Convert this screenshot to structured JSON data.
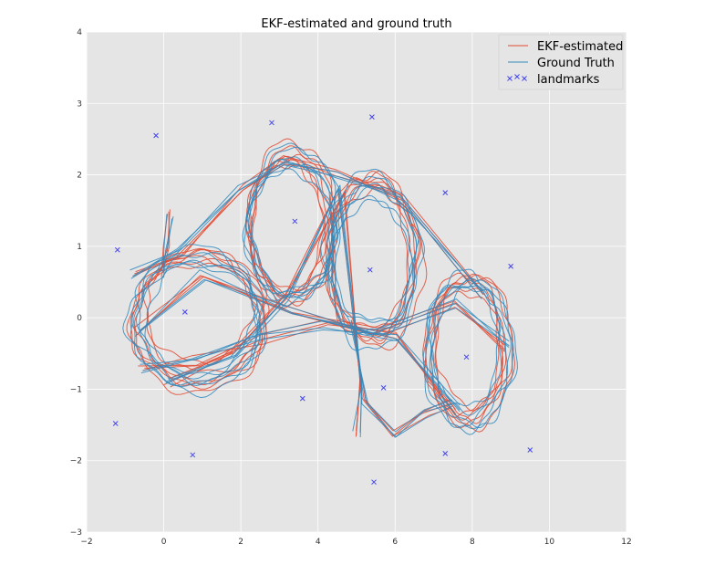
{
  "chart_data": {
    "type": "line",
    "title": "EKF-estimated and ground truth",
    "xlabel": "",
    "ylabel": "",
    "xlim": [
      -2,
      12
    ],
    "ylim": [
      -3,
      4
    ],
    "x_ticks": [
      -2,
      0,
      2,
      4,
      6,
      8,
      10,
      12
    ],
    "y_ticks": [
      -3,
      -2,
      -1,
      0,
      1,
      2,
      3,
      4
    ],
    "grid": true,
    "legend_position": "top-right",
    "colors": {
      "background": "#e5e5e5",
      "grid": "#ffffff",
      "ekf": "#e24a33",
      "truth": "#348abd",
      "landmarks": "#4444ee"
    },
    "series": [
      {
        "name": "EKF-estimated",
        "style": "line",
        "loops": [
          {
            "cx": 0.9,
            "cy": 0.0,
            "rx": 1.55,
            "ry": 0.88,
            "count": 6,
            "seed": 1
          },
          {
            "cx": 3.3,
            "cy": 1.25,
            "rx": 1.05,
            "ry": 1.0,
            "count": 6,
            "seed": 2
          },
          {
            "cx": 5.4,
            "cy": 0.8,
            "rx": 1.1,
            "ry": 1.05,
            "count": 6,
            "seed": 3
          },
          {
            "cx": 7.9,
            "cy": -0.45,
            "rx": 1.0,
            "ry": 0.95,
            "count": 6,
            "seed": 4
          }
        ],
        "connectors": [
          {
            "x": [
              -0.7,
              1.0,
              3.3,
              5.5,
              7.5,
              8.9
            ],
            "y": [
              -0.2,
              0.6,
              0.1,
              -0.2,
              0.2,
              -0.4
            ]
          },
          {
            "x": [
              -0.6,
              0.8,
              2.5,
              4.2,
              6.0,
              7.6
            ],
            "y": [
              -0.7,
              -0.6,
              -0.3,
              -0.1,
              -0.25,
              -1.3
            ]
          },
          {
            "x": [
              0.1,
              1.8,
              3.2,
              4.6,
              5.1,
              5.0
            ],
            "y": [
              -0.9,
              -0.5,
              0.3,
              1.8,
              -0.9,
              -1.6
            ]
          },
          {
            "x": [
              -0.8,
              0.4,
              2.0,
              3.2,
              4.5,
              6.2,
              8.2
            ],
            "y": [
              0.6,
              0.9,
              1.8,
              2.2,
              2.0,
              1.7,
              0.3
            ]
          },
          {
            "x": [
              4.9,
              5.2,
              6.0,
              6.8,
              7.5
            ],
            "y": [
              -0.1,
              -1.2,
              -1.6,
              -1.35,
              -1.2
            ]
          },
          {
            "x": [
              0.15,
              0.05,
              -0.1
            ],
            "y": [
              1.45,
              1.0,
              0.6
            ]
          }
        ]
      },
      {
        "name": "Ground Truth",
        "style": "line",
        "loops": [
          {
            "cx": 0.9,
            "cy": 0.0,
            "rx": 1.55,
            "ry": 0.88,
            "count": 6,
            "seed": 11
          },
          {
            "cx": 3.3,
            "cy": 1.25,
            "rx": 1.05,
            "ry": 1.0,
            "count": 6,
            "seed": 12
          },
          {
            "cx": 5.4,
            "cy": 0.8,
            "rx": 1.1,
            "ry": 1.05,
            "count": 6,
            "seed": 13
          },
          {
            "cx": 7.9,
            "cy": -0.45,
            "rx": 1.0,
            "ry": 0.95,
            "count": 6,
            "seed": 14
          }
        ],
        "connectors": [
          {
            "x": [
              -0.7,
              1.0,
              3.3,
              5.5,
              7.5,
              8.9
            ],
            "y": [
              -0.2,
              0.6,
              0.1,
              -0.2,
              0.2,
              -0.4
            ]
          },
          {
            "x": [
              -0.6,
              0.8,
              2.5,
              4.2,
              6.0,
              7.6
            ],
            "y": [
              -0.7,
              -0.6,
              -0.3,
              -0.1,
              -0.25,
              -1.3
            ]
          },
          {
            "x": [
              0.1,
              1.8,
              3.2,
              4.6,
              5.1,
              5.0
            ],
            "y": [
              -0.9,
              -0.5,
              0.3,
              1.8,
              -0.9,
              -1.6
            ]
          },
          {
            "x": [
              -0.8,
              0.4,
              2.0,
              3.2,
              4.5,
              6.2,
              8.2
            ],
            "y": [
              0.6,
              0.9,
              1.8,
              2.2,
              2.0,
              1.7,
              0.3
            ]
          },
          {
            "x": [
              4.9,
              5.2,
              6.0,
              6.8,
              7.5
            ],
            "y": [
              -0.1,
              -1.2,
              -1.6,
              -1.35,
              -1.2
            ]
          },
          {
            "x": [
              0.15,
              0.05,
              -0.1
            ],
            "y": [
              1.45,
              1.0,
              0.6
            ]
          }
        ]
      },
      {
        "name": "landmarks",
        "style": "x-marker",
        "points": [
          {
            "x": -0.2,
            "y": 2.55
          },
          {
            "x": 2.8,
            "y": 2.73
          },
          {
            "x": 5.4,
            "y": 2.81
          },
          {
            "x": 7.3,
            "y": 1.75
          },
          {
            "x": -1.2,
            "y": 0.95
          },
          {
            "x": 3.4,
            "y": 1.35
          },
          {
            "x": 5.35,
            "y": 0.67
          },
          {
            "x": 9.0,
            "y": 0.72
          },
          {
            "x": 0.55,
            "y": 0.08
          },
          {
            "x": 7.85,
            "y": -0.55
          },
          {
            "x": 3.6,
            "y": -1.13
          },
          {
            "x": 5.7,
            "y": -0.98
          },
          {
            "x": -1.25,
            "y": -1.48
          },
          {
            "x": 0.75,
            "y": -1.92
          },
          {
            "x": 7.3,
            "y": -1.9
          },
          {
            "x": 9.5,
            "y": -1.85
          },
          {
            "x": 5.45,
            "y": -2.3
          }
        ]
      }
    ]
  }
}
